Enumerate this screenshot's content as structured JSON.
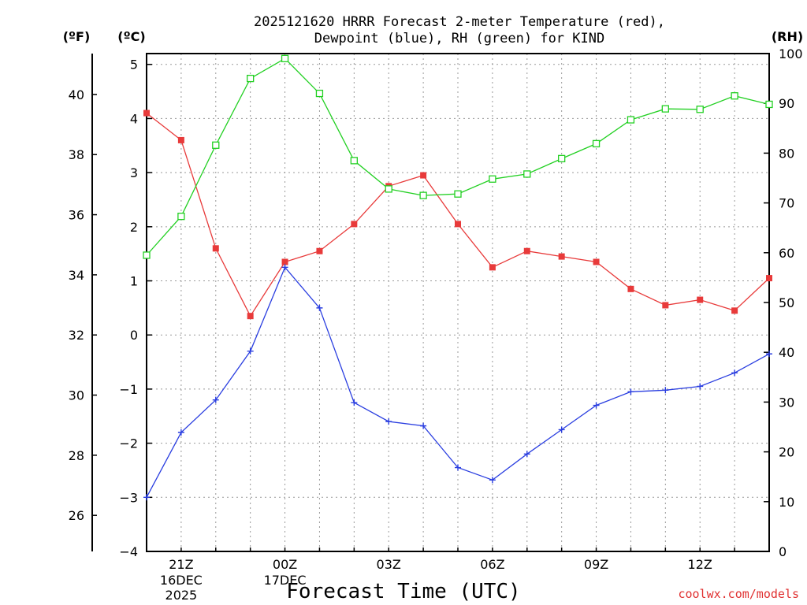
{
  "chart_data": {
    "type": "line",
    "title_line1": "2025121620 HRRR Forecast 2-meter Temperature (red),",
    "title_line2": "Dewpoint (blue), RH (green) for KIND",
    "xlabel": "Forecast Time (UTC)",
    "credit": "coolwx.com/models",
    "unit_left_f": "(ºF)",
    "unit_left_c": "(ºC)",
    "unit_right": "(RH)",
    "x": [
      20,
      21,
      22,
      23,
      24,
      25,
      26,
      27,
      28,
      29,
      30,
      31,
      32,
      33,
      34,
      35,
      36,
      37,
      38
    ],
    "xlim": [
      20,
      38
    ],
    "x_ticks": [
      {
        "x": 21,
        "label": "21Z",
        "sub1": "16DEC",
        "sub2": "2025"
      },
      {
        "x": 24,
        "label": "00Z",
        "sub1": "17DEC",
        "sub2": ""
      },
      {
        "x": 27,
        "label": "03Z",
        "sub1": "",
        "sub2": ""
      },
      {
        "x": 30,
        "label": "06Z",
        "sub1": "",
        "sub2": ""
      },
      {
        "x": 33,
        "label": "09Z",
        "sub1": "",
        "sub2": ""
      },
      {
        "x": 36,
        "label": "12Z",
        "sub1": "",
        "sub2": ""
      }
    ],
    "celsius_axis": {
      "range": [
        -4,
        5.2
      ],
      "ticks": [
        "−4",
        "−3",
        "−2",
        "−1",
        "0",
        "1",
        "2",
        "3",
        "4",
        "5"
      ],
      "tick_values": [
        -4,
        -3,
        -2,
        -1,
        0,
        1,
        2,
        3,
        4,
        5
      ]
    },
    "fahrenheit_axis": {
      "ticks": [
        "26",
        "28",
        "30",
        "32",
        "34",
        "36",
        "38",
        "40"
      ],
      "tick_values": [
        26,
        28,
        30,
        32,
        34,
        36,
        38,
        40
      ]
    },
    "rh_axis": {
      "range": [
        0,
        100
      ],
      "ticks": [
        "0",
        "10",
        "20",
        "30",
        "40",
        "50",
        "60",
        "70",
        "80",
        "90",
        "100"
      ],
      "tick_values": [
        0,
        10,
        20,
        30,
        40,
        50,
        60,
        70,
        80,
        90,
        100
      ]
    },
    "series": [
      {
        "name": "Temperature",
        "units": "C",
        "color": "#e83a3a",
        "marker": "filled-square",
        "values": [
          4.1,
          3.6,
          1.6,
          0.35,
          1.35,
          1.55,
          2.05,
          2.75,
          2.95,
          2.05,
          1.25,
          1.55,
          1.45,
          1.35,
          0.85,
          0.55,
          0.65,
          0.45,
          1.05
        ]
      },
      {
        "name": "Dewpoint",
        "units": "C",
        "color": "#2a3ee0",
        "marker": "plus",
        "values": [
          -3.0,
          -1.8,
          -1.2,
          -0.3,
          1.25,
          0.5,
          -1.25,
          -1.6,
          -1.68,
          -2.45,
          -2.68,
          -2.2,
          -1.75,
          -1.3,
          -1.05,
          -1.02,
          -0.95,
          -0.7,
          -0.35
        ]
      },
      {
        "name": "RH",
        "units": "%",
        "color": "#22d022",
        "marker": "open-square",
        "values": [
          59.5,
          67.3,
          81.6,
          95.0,
          99.0,
          92.0,
          78.5,
          72.8,
          71.5,
          71.8,
          74.8,
          75.8,
          78.9,
          81.9,
          86.7,
          88.9,
          88.8,
          91.5,
          89.8
        ]
      }
    ]
  }
}
